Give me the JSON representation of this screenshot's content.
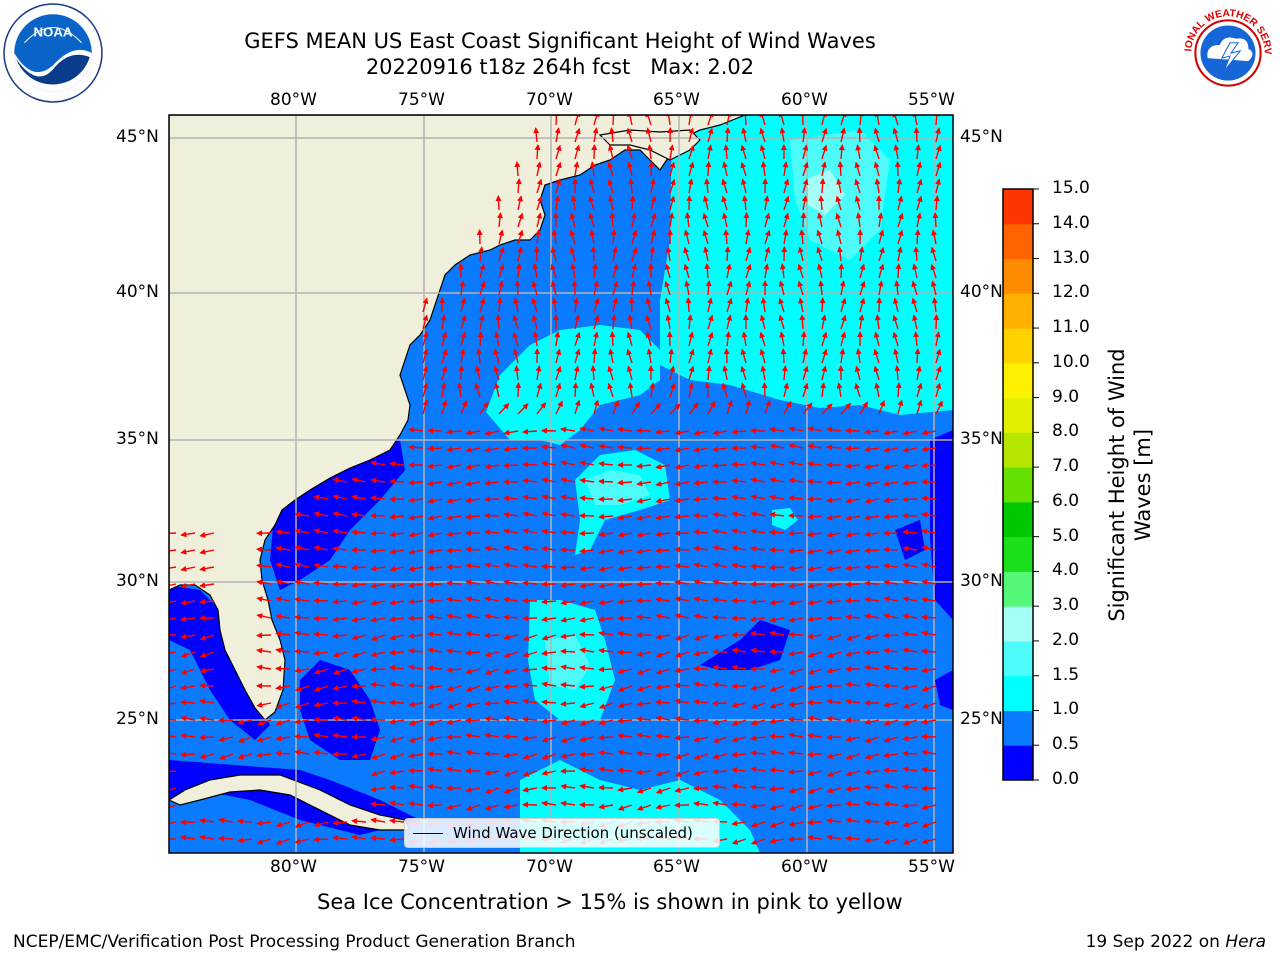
{
  "header": {
    "title": "GEFS MEAN US East Coast Significant Height of Wind Waves",
    "subtitle": "20220916 t18z 264h fcst   Max: 2.02"
  },
  "logos": {
    "left": "NOAA",
    "right": "NATIONAL WEATHER SERVICE"
  },
  "map": {
    "lon_labels": [
      "80°W",
      "75°W",
      "70°W",
      "65°W",
      "60°W",
      "55°W"
    ],
    "lat_labels": [
      "45°N",
      "40°N",
      "35°N",
      "30°N",
      "25°N"
    ],
    "lon_range": [
      -85,
      -54.5
    ],
    "lat_range": [
      20.5,
      46
    ],
    "colors": {
      "land": "#efefdc",
      "ocean_0_0p5": "#0000ff",
      "ocean_0p5_1": "#0a7aff",
      "ocean_1_1p5": "#00ffff",
      "ocean_1p5_2": "#4dfbfb",
      "ocean_2_3": "#a6fff6",
      "arrows": "#ff0000",
      "grid": "#b3b3b3"
    }
  },
  "legend": {
    "label": "Wind Wave Direction (unscaled)"
  },
  "colorbar": {
    "title": "Significant Height of Wind Waves [m]",
    "ticks": [
      "15.0",
      "14.0",
      "13.0",
      "12.0",
      "11.0",
      "10.0",
      "9.0",
      "8.0",
      "7.0",
      "6.0",
      "5.0",
      "4.0",
      "3.0",
      "2.0",
      "1.5",
      "1.0",
      "0.5",
      "0.0"
    ],
    "colors": [
      "#0000ff",
      "#0a7aff",
      "#00ffff",
      "#4dfbfb",
      "#a6fff6",
      "#54f777",
      "#1bdf1b",
      "#00c800",
      "#66e000",
      "#b4e600",
      "#e0f000",
      "#fff200",
      "#ffd200",
      "#ffb000",
      "#ff8c00",
      "#ff6400",
      "#ff3600",
      "#ff0000"
    ]
  },
  "note": "Sea Ice Concentration > 15% is shown in pink to yellow",
  "footer": {
    "left": "NCEP/EMC/Verification Post Processing Product Generation Branch",
    "date": "19 Sep 2022 on",
    "host": "Hera"
  }
}
